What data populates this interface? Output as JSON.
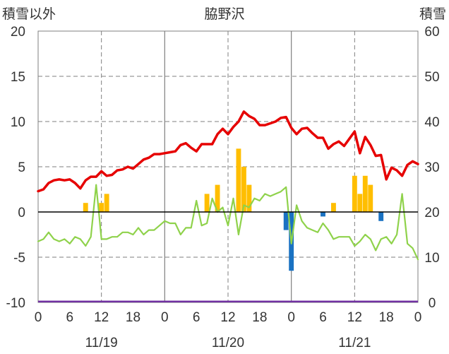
{
  "chart_data": {
    "type": "bar+line",
    "title": "脇野沢",
    "left_axis_label": "積雪以外",
    "right_axis_label": "積雪",
    "left_ylim": [
      -10,
      20
    ],
    "left_yticks": [
      -10,
      -5,
      0,
      5,
      10,
      15,
      20
    ],
    "left_ytick_labels": [
      "-10",
      "-5",
      "0",
      "5",
      "10",
      "15",
      "20"
    ],
    "right_ylim": [
      0,
      60
    ],
    "right_yticks": [
      0,
      10,
      20,
      30,
      40,
      50,
      60
    ],
    "right_ytick_labels": [
      "0",
      "10",
      "20",
      "30",
      "40",
      "50",
      "60"
    ],
    "xlim": [
      0,
      72
    ],
    "x_unit": "hours from 11/19 00:00",
    "x_tick_positions": [
      0,
      6,
      12,
      18,
      24,
      30,
      36,
      42,
      48,
      54,
      60,
      66,
      72
    ],
    "x_tick_labels": [
      "0",
      "6",
      "12",
      "18",
      "0",
      "6",
      "12",
      "18",
      "0",
      "6",
      "12",
      "18",
      "0"
    ],
    "date_labels": [
      {
        "text": "11/19",
        "x": 12
      },
      {
        "text": "11/20",
        "x": 36
      },
      {
        "text": "11/21",
        "x": 60
      }
    ],
    "grid": {
      "solid_vertical_at": [
        24,
        48
      ],
      "dashed_vertical_at": [
        12,
        36,
        60
      ],
      "dashed_horizontal_at": [
        -5,
        5,
        10,
        15
      ]
    },
    "colors": {
      "temperature": "#e60000",
      "snow_depth": "#8fd24b",
      "precip": "#ffbe00",
      "negative_change": "#1a72c2",
      "bottom_line": "#7030a0",
      "axis": "#000000",
      "grid": "#7f7f7f"
    },
    "series": [
      {
        "key": "temperature",
        "axis": "left",
        "x": [
          0,
          1,
          2,
          3,
          4,
          5,
          6,
          7,
          8,
          9,
          10,
          11,
          12,
          13,
          14,
          15,
          16,
          17,
          18,
          19,
          20,
          21,
          22,
          23,
          24,
          25,
          26,
          27,
          28,
          29,
          30,
          31,
          32,
          33,
          34,
          35,
          36,
          37,
          38,
          39,
          40,
          41,
          42,
          43,
          44,
          45,
          46,
          47,
          48,
          49,
          50,
          51,
          52,
          53,
          54,
          55,
          56,
          57,
          58,
          59,
          60,
          61,
          62,
          63,
          64,
          65,
          66,
          67,
          68,
          69,
          70,
          71,
          72
        ],
        "values": [
          2.3,
          2.5,
          3.2,
          3.5,
          3.6,
          3.5,
          3.6,
          3.2,
          2.6,
          3.5,
          3.9,
          3.9,
          4.5,
          4.0,
          4.1,
          4.6,
          4.7,
          5.0,
          4.8,
          5.3,
          5.8,
          6.0,
          6.4,
          6.4,
          6.5,
          6.6,
          6.7,
          7.4,
          7.6,
          7.1,
          6.7,
          7.5,
          7.5,
          7.5,
          8.6,
          9.2,
          8.6,
          9.4,
          10.0,
          11.1,
          10.6,
          10.3,
          9.6,
          9.6,
          9.8,
          10.0,
          10.4,
          10.5,
          9.3,
          8.6,
          9.2,
          9.3,
          8.7,
          8.2,
          8.2,
          7.0,
          7.5,
          7.8,
          7.3,
          8.1,
          8.9,
          6.5,
          8.3,
          7.4,
          6.2,
          6.3,
          3.6,
          4.9,
          4.6,
          4.0,
          5.2,
          5.6,
          5.3
        ]
      },
      {
        "key": "snow_depth",
        "axis": "right",
        "x": [
          0,
          1,
          2,
          3,
          4,
          5,
          6,
          7,
          8,
          9,
          10,
          11,
          12,
          13,
          14,
          15,
          16,
          17,
          18,
          19,
          20,
          21,
          22,
          23,
          24,
          25,
          26,
          27,
          28,
          29,
          30,
          31,
          32,
          33,
          34,
          35,
          36,
          37,
          38,
          39,
          40,
          41,
          42,
          43,
          44,
          45,
          46,
          47,
          48,
          49,
          50,
          51,
          52,
          53,
          54,
          55,
          56,
          57,
          58,
          59,
          60,
          61,
          62,
          63,
          64,
          65,
          66,
          67,
          68,
          69,
          70,
          71,
          72
        ],
        "values": [
          13.5,
          14,
          15.5,
          14,
          13.5,
          14,
          13,
          14.5,
          14,
          12.5,
          14.5,
          26,
          14,
          14,
          14.5,
          14.5,
          15.5,
          15.5,
          15,
          16.5,
          15,
          16,
          16,
          17,
          18,
          17.5,
          17.5,
          15,
          16.5,
          16.5,
          22.5,
          17,
          17.5,
          23,
          20,
          21,
          17,
          23,
          15,
          21.5,
          21,
          23,
          22.5,
          24,
          23.5,
          24,
          24.5,
          25.5,
          13,
          21.5,
          18,
          16.5,
          16,
          15.5,
          17.5,
          16,
          14,
          14.5,
          14.5,
          14.5,
          12.5,
          13.5,
          15,
          14,
          11.5,
          14,
          14.5,
          13,
          15,
          24,
          13,
          12,
          9.5
        ]
      }
    ],
    "bars": [
      {
        "x": 9,
        "value": 1,
        "color": "precip"
      },
      {
        "x": 12,
        "value": 1,
        "color": "precip"
      },
      {
        "x": 13,
        "value": 2,
        "color": "precip"
      },
      {
        "x": 32,
        "value": 2,
        "color": "precip"
      },
      {
        "x": 34,
        "value": 3,
        "color": "precip"
      },
      {
        "x": 38,
        "value": 7,
        "color": "precip"
      },
      {
        "x": 39,
        "value": 5,
        "color": "precip"
      },
      {
        "x": 40,
        "value": 3,
        "color": "precip"
      },
      {
        "x": 47,
        "value": -2,
        "color": "negative_change"
      },
      {
        "x": 48,
        "value": -6.5,
        "color": "negative_change"
      },
      {
        "x": 54,
        "value": -0.5,
        "color": "negative_change"
      },
      {
        "x": 56,
        "value": 1,
        "color": "precip"
      },
      {
        "x": 60,
        "value": 4,
        "color": "precip"
      },
      {
        "x": 61,
        "value": 2,
        "color": "precip"
      },
      {
        "x": 62,
        "value": 4,
        "color": "precip"
      },
      {
        "x": 63,
        "value": 3,
        "color": "precip"
      },
      {
        "x": 65,
        "value": -1,
        "color": "negative_change"
      }
    ],
    "bottom_line_value": -9.9
  }
}
